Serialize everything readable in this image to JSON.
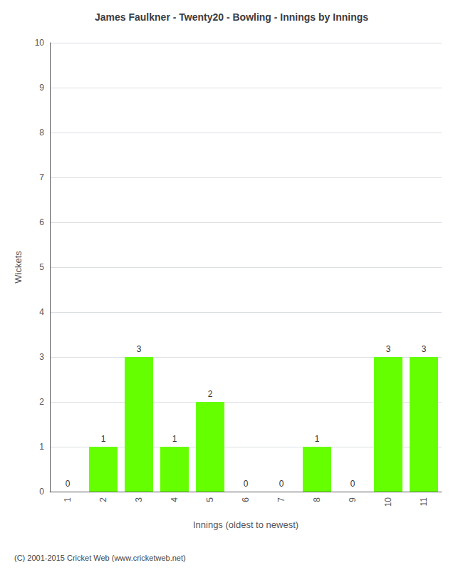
{
  "chart_data": {
    "type": "bar",
    "title": "James Faulkner - Twenty20 - Bowling - Innings by Innings",
    "xlabel": "Innings (oldest to newest)",
    "ylabel": "Wickets",
    "categories": [
      "1",
      "2",
      "3",
      "4",
      "5",
      "6",
      "7",
      "8",
      "9",
      "10",
      "11"
    ],
    "values": [
      0,
      1,
      3,
      1,
      2,
      0,
      0,
      1,
      0,
      3,
      3
    ],
    "color": "#66ff00",
    "ylim": [
      0,
      10
    ],
    "yticks": [
      0,
      1,
      2,
      3,
      4,
      5,
      6,
      7,
      8,
      9,
      10
    ],
    "grid": true,
    "data_labels": true,
    "annotations": [
      "(C) 2001-2015 Cricket Web (www.cricketweb.net)"
    ]
  }
}
